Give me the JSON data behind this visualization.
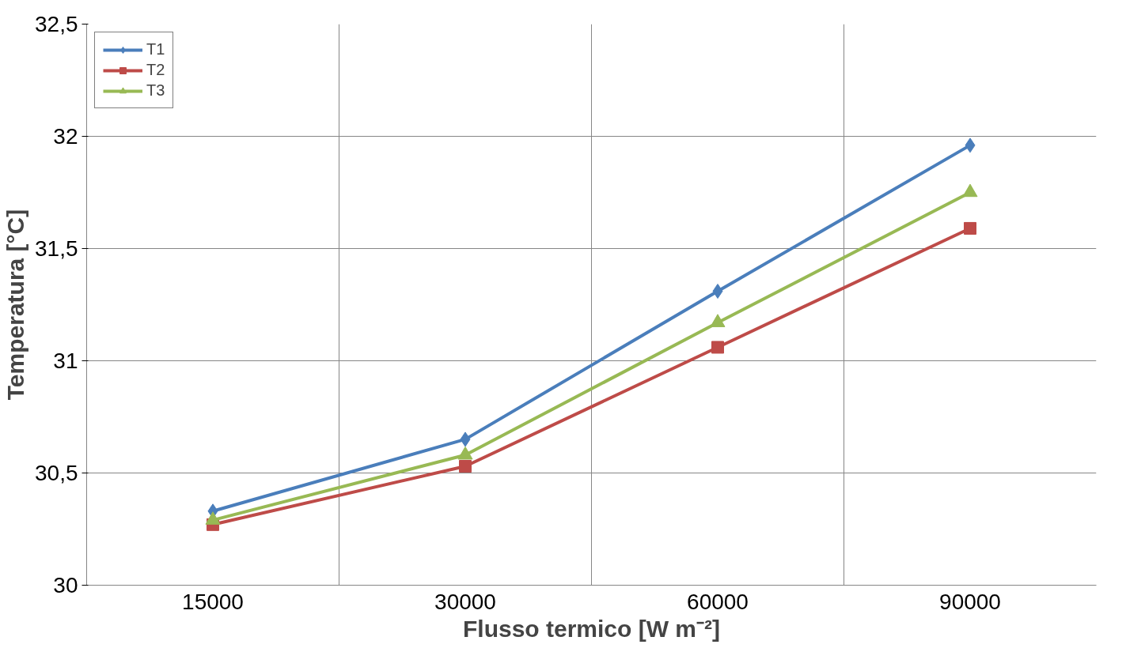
{
  "chart_data": {
    "type": "line",
    "xlabel": "Flusso termico [W m⁻²]",
    "ylabel": "Temperatura [°C]",
    "categories": [
      "15000",
      "30000",
      "60000",
      "90000"
    ],
    "series": [
      {
        "name": "T1",
        "color": "#4a7ebb",
        "marker": "diamond",
        "values": [
          30.33,
          30.65,
          31.31,
          31.96
        ]
      },
      {
        "name": "T2",
        "color": "#be4b48",
        "marker": "square",
        "values": [
          30.27,
          30.53,
          31.06,
          31.59
        ]
      },
      {
        "name": "T3",
        "color": "#98b954",
        "marker": "triangle",
        "values": [
          30.29,
          30.58,
          31.17,
          31.75
        ]
      }
    ],
    "ylim": [
      30,
      32.5
    ],
    "yticks": [
      30,
      {
        "value": 30.5,
        "label": "30,5"
      },
      31,
      {
        "value": 31.5,
        "label": "31,5"
      },
      32,
      {
        "value": 32.5,
        "label": "32,5"
      }
    ],
    "grid": true,
    "legend": "top left",
    "line_style": "solid"
  }
}
